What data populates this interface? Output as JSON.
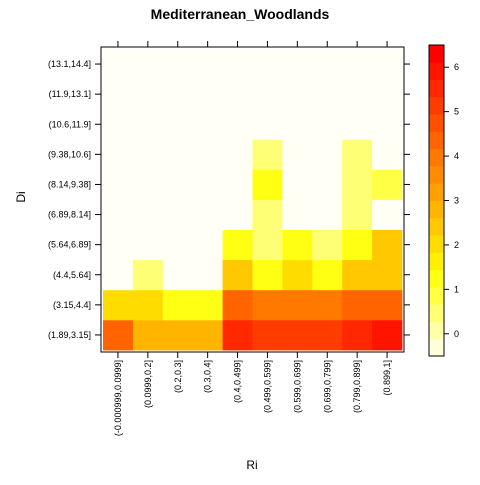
{
  "chart_data": {
    "type": "heatmap",
    "title": "Mediterranean_Woodlands",
    "xlabel": "Ri",
    "ylabel": "Di",
    "x_categories": [
      "(-0.000999,0.0999]",
      "(0.0999,0.2]",
      "(0.2,0.3]",
      "(0.3,0.4]",
      "(0.4,0.499]",
      "(0.499,0.599]",
      "(0.599,0.699]",
      "(0.699,0.799]",
      "(0.799,0.899]",
      "(0.899,1]"
    ],
    "y_categories": [
      "(1.89,3.15]",
      "(3.15,4.4]",
      "(4.4,5.64]",
      "(5.64,6.89]",
      "(6.89,8.14]",
      "(8.14,9.38]",
      "(9.38,10.6]",
      "(10.6,11.9]",
      "(11.9,13.1]",
      "(13.1,14.4]"
    ],
    "z_values": [
      [
        4.2,
        2.9,
        2.9,
        2.9,
        5.6,
        5.3,
        5.3,
        5.3,
        5.6,
        6.0
      ],
      [
        2.2,
        2.2,
        1.4,
        1.2,
        4.2,
        3.9,
        3.9,
        3.9,
        4.2,
        4.2
      ],
      [
        null,
        0.5,
        null,
        null,
        2.5,
        1.4,
        2.2,
        1.4,
        2.5,
        2.5
      ],
      [
        null,
        null,
        null,
        null,
        1.3,
        0.4,
        1.3,
        0.6,
        1.1,
        2.4
      ],
      [
        null,
        null,
        null,
        null,
        null,
        0.4,
        null,
        null,
        0.4,
        null
      ],
      [
        null,
        null,
        null,
        null,
        null,
        1.1,
        null,
        null,
        0.4,
        0.8
      ],
      [
        null,
        null,
        null,
        null,
        null,
        0.4,
        null,
        null,
        0.4,
        null
      ],
      [
        null,
        null,
        null,
        null,
        null,
        null,
        null,
        null,
        null,
        null
      ],
      [
        null,
        null,
        null,
        null,
        null,
        null,
        null,
        null,
        null,
        null
      ],
      [
        null,
        null,
        null,
        null,
        null,
        null,
        null,
        null,
        null,
        null
      ]
    ],
    "colorbar": {
      "range": [
        -0.5,
        6.5
      ],
      "ticks": [
        "0",
        "1",
        "2",
        "3",
        "4",
        "5",
        "6"
      ],
      "tick_values": [
        0,
        1,
        2,
        3,
        4,
        5,
        6
      ],
      "colors": [
        "#FFFFDA",
        "#FFFFA8",
        "#FFFF76",
        "#FFFF45",
        "#FFFF13",
        "#FFEF00",
        "#FFDC00",
        "#FFC800",
        "#FFB400",
        "#FFA000",
        "#FF8C00",
        "#FF7800",
        "#FF6400",
        "#FF5000",
        "#FF3C00",
        "#FF2800",
        "#FF1400",
        "#FF0000"
      ]
    },
    "empty_color": "#FFFFF6"
  }
}
